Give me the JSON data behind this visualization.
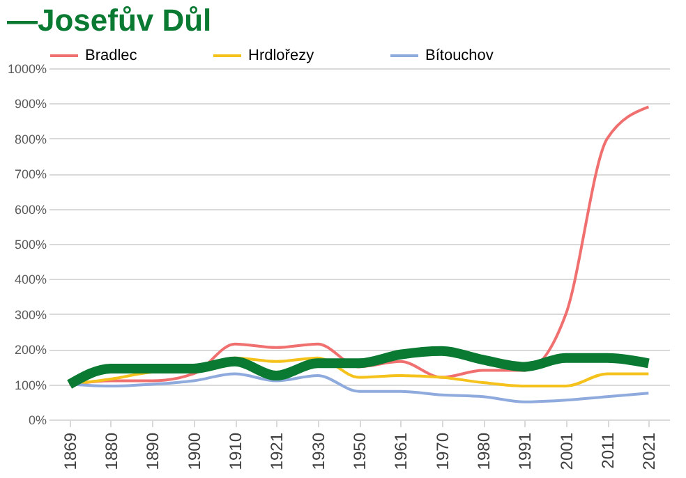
{
  "chart_data": {
    "type": "line",
    "title": "—Josefův Důl",
    "categories": [
      "1869",
      "1880",
      "1890",
      "1900",
      "1910",
      "1921",
      "1930",
      "1950",
      "1961",
      "1970",
      "1980",
      "1991",
      "2001",
      "2011",
      "2021"
    ],
    "series": [
      {
        "name": "Bradlec",
        "color": "#f07070",
        "values": [
          100,
          110,
          110,
          130,
          215,
          205,
          215,
          150,
          165,
          120,
          140,
          140,
          300,
          800,
          890
        ]
      },
      {
        "name": "Hrdlořezy",
        "color": "#f5c21b",
        "values": [
          100,
          115,
          135,
          140,
          175,
          165,
          175,
          120,
          125,
          120,
          105,
          95,
          95,
          130,
          130
        ]
      },
      {
        "name": "Bítouchov",
        "color": "#8faadc",
        "values": [
          100,
          95,
          100,
          110,
          130,
          110,
          125,
          80,
          80,
          70,
          65,
          50,
          55,
          65,
          75
        ]
      },
      {
        "color": "#0a7a32",
        "values": [
          100,
          145,
          145,
          145,
          165,
          125,
          160,
          160,
          185,
          195,
          170,
          150,
          175,
          175,
          160
        ]
      }
    ],
    "ylim": [
      0,
      1000
    ],
    "yticks": [
      {
        "value": 0,
        "label": "0%"
      },
      {
        "value": 100,
        "label": "100%"
      },
      {
        "value": 200,
        "label": "200%"
      },
      {
        "value": 300,
        "label": "300%"
      },
      {
        "value": 400,
        "label": "400%"
      },
      {
        "value": 500,
        "label": "500%"
      },
      {
        "value": 600,
        "label": "600%"
      },
      {
        "value": 700,
        "label": "700%"
      },
      {
        "value": 800,
        "label": "800%"
      },
      {
        "value": 900,
        "label": "900%"
      },
      {
        "value": 1000,
        "label": "1000%"
      }
    ],
    "grid": "y",
    "legend": "top",
    "marker": "none",
    "line_style": "solid"
  }
}
